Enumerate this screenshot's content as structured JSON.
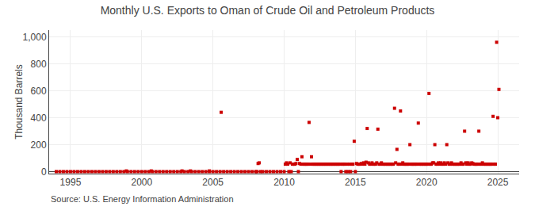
{
  "chart_data": {
    "type": "scatter",
    "title": "Monthly U.S. Exports to Oman of Crude Oil and Petroleum Products",
    "ylabel": "Thousand Barrels",
    "annotations": [
      "Source: U.S. Energy Information Administration"
    ],
    "color": "#cc0000",
    "marker": "square",
    "grid": true,
    "xlim": [
      1993.5,
      2026.5
    ],
    "ylim": [
      -15,
      1050
    ],
    "xticks": [
      1995,
      2000,
      2005,
      2010,
      2015,
      2020,
      2025
    ],
    "yticks": [
      0,
      200,
      400,
      600,
      800,
      {
        "value": 1000,
        "label": "1,000"
      }
    ],
    "x": [
      1994.0,
      1994.25,
      1994.5,
      1994.75,
      1995.0,
      1995.25,
      1995.5,
      1995.75,
      1996.0,
      1996.25,
      1996.5,
      1996.75,
      1997.0,
      1997.25,
      1997.5,
      1997.75,
      1998.0,
      1998.25,
      1998.5,
      1998.75,
      1998.92,
      1999.0,
      1999.25,
      1999.5,
      1999.75,
      2000.0,
      2000.25,
      2000.5,
      2000.67,
      2000.75,
      2001.0,
      2001.25,
      2001.5,
      2001.75,
      2002.0,
      2002.25,
      2002.5,
      2002.75,
      2002.83,
      2003.0,
      2003.25,
      2003.42,
      2003.5,
      2003.75,
      2004.0,
      2004.25,
      2004.5,
      2004.75,
      2004.75,
      2005.0,
      2005.25,
      2005.5,
      2005.58,
      2005.75,
      2006.0,
      2006.25,
      2006.5,
      2006.75,
      2007.0,
      2007.25,
      2007.5,
      2007.75,
      2008.0,
      2008.08,
      2008.17,
      2008.25,
      2008.33,
      2008.5,
      2008.75,
      2009.0,
      2009.25,
      2009.5,
      2009.75,
      2010.0,
      2010.08,
      2010.17,
      2010.25,
      2010.33,
      2010.42,
      2010.5,
      2010.58,
      2010.67,
      2010.75,
      2010.83,
      2010.92,
      2011.0,
      2011.08,
      2011.17,
      2011.25,
      2011.33,
      2011.42,
      2011.5,
      2011.58,
      2011.67,
      2011.75,
      2011.83,
      2011.92,
      2012.0,
      2012.08,
      2012.17,
      2012.25,
      2012.33,
      2012.42,
      2012.5,
      2012.58,
      2012.67,
      2012.75,
      2012.83,
      2012.92,
      2013.0,
      2013.08,
      2013.17,
      2013.25,
      2013.33,
      2013.42,
      2013.5,
      2013.58,
      2013.67,
      2013.75,
      2013.83,
      2013.92,
      2014.0,
      2014.08,
      2014.17,
      2014.25,
      2014.33,
      2014.42,
      2014.5,
      2014.58,
      2014.67,
      2014.75,
      2014.83,
      2014.92,
      2015.0,
      2015.08,
      2015.17,
      2015.25,
      2015.33,
      2015.42,
      2015.5,
      2015.58,
      2015.67,
      2015.75,
      2015.83,
      2015.92,
      2016.0,
      2016.08,
      2016.17,
      2016.25,
      2016.33,
      2016.42,
      2016.5,
      2016.58,
      2016.67,
      2016.75,
      2016.83,
      2016.92,
      2017.0,
      2017.08,
      2017.17,
      2017.25,
      2017.33,
      2017.42,
      2017.5,
      2017.58,
      2017.67,
      2017.75,
      2017.83,
      2017.92,
      2018.0,
      2018.08,
      2018.17,
      2018.25,
      2018.33,
      2018.42,
      2018.5,
      2018.58,
      2018.67,
      2018.75,
      2018.83,
      2018.92,
      2019.0,
      2019.08,
      2019.17,
      2019.25,
      2019.33,
      2019.42,
      2019.5,
      2019.58,
      2019.67,
      2019.75,
      2019.83,
      2019.92,
      2020.0,
      2020.08,
      2020.17,
      2020.25,
      2020.33,
      2020.42,
      2020.5,
      2020.58,
      2020.67,
      2020.75,
      2020.83,
      2020.92,
      2021.0,
      2021.08,
      2021.17,
      2021.25,
      2021.33,
      2021.42,
      2021.5,
      2021.58,
      2021.67,
      2021.75,
      2021.83,
      2021.92,
      2022.0,
      2022.08,
      2022.17,
      2022.25,
      2022.33,
      2022.42,
      2022.5,
      2022.58,
      2022.67,
      2022.75,
      2022.83,
      2022.92,
      2023.0,
      2023.08,
      2023.17,
      2023.25,
      2023.33,
      2023.42,
      2023.5,
      2023.58,
      2023.67,
      2023.75,
      2023.83,
      2023.92,
      2024.0,
      2024.08,
      2024.17,
      2024.25,
      2024.33,
      2024.42,
      2024.5,
      2024.58,
      2024.67,
      2024.75,
      2024.83,
      2024.92,
      2025.0,
      2025.08
    ],
    "values": [
      0,
      0,
      0,
      0,
      0,
      0,
      0,
      0,
      0,
      0,
      0,
      0,
      0,
      0,
      0,
      0,
      0,
      0,
      0,
      0,
      5,
      0,
      0,
      0,
      0,
      0,
      0,
      0,
      5,
      0,
      0,
      0,
      0,
      0,
      0,
      0,
      0,
      0,
      5,
      0,
      0,
      5,
      0,
      0,
      0,
      0,
      0,
      0,
      5,
      0,
      0,
      0,
      440,
      0,
      0,
      0,
      0,
      0,
      0,
      0,
      0,
      0,
      0,
      0,
      60,
      65,
      0,
      0,
      0,
      0,
      0,
      0,
      0,
      0,
      55,
      65,
      55,
      0,
      65,
      0,
      55,
      55,
      55,
      60,
      90,
      0,
      60,
      55,
      110,
      55,
      55,
      55,
      55,
      55,
      365,
      55,
      110,
      55,
      55,
      55,
      55,
      55,
      55,
      55,
      55,
      55,
      55,
      55,
      55,
      55,
      55,
      55,
      55,
      55,
      55,
      55,
      55,
      55,
      55,
      55,
      55,
      0,
      55,
      55,
      55,
      0,
      55,
      0,
      55,
      0,
      55,
      55,
      225,
      0,
      60,
      55,
      55,
      55,
      60,
      55,
      65,
      55,
      70,
      320,
      65,
      55,
      55,
      65,
      55,
      55,
      55,
      65,
      315,
      55,
      55,
      65,
      55,
      55,
      55,
      55,
      55,
      55,
      55,
      55,
      55,
      55,
      470,
      65,
      165,
      55,
      55,
      450,
      55,
      65,
      55,
      55,
      55,
      55,
      55,
      200,
      55,
      55,
      55,
      55,
      55,
      55,
      360,
      55,
      55,
      55,
      55,
      55,
      55,
      55,
      55,
      580,
      55,
      55,
      65,
      65,
      200,
      55,
      55,
      65,
      55,
      65,
      55,
      55,
      65,
      55,
      200,
      65,
      55,
      55,
      65,
      55,
      55,
      55,
      55,
      55,
      55,
      55,
      65,
      55,
      55,
      300,
      65,
      55,
      65,
      55,
      55,
      65,
      60,
      55,
      55,
      55,
      55,
      300,
      55,
      55,
      65,
      55,
      55,
      55,
      55,
      55,
      55,
      55,
      55,
      410,
      55,
      55,
      960,
      400,
      610
    ]
  }
}
